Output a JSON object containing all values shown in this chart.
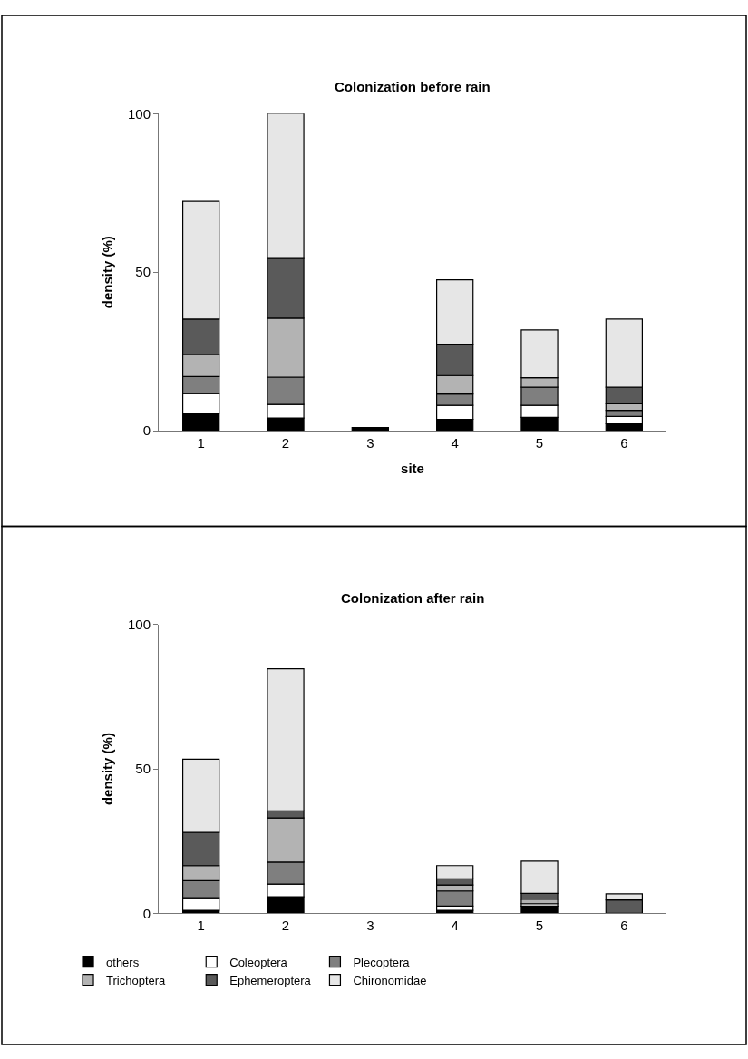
{
  "chart_data": [
    {
      "type": "bar",
      "stacked": true,
      "title": "Colonization before rain",
      "xlabel": "site",
      "ylabel": "density (%)",
      "categories": [
        "1",
        "2",
        "3",
        "4",
        "5",
        "6"
      ],
      "ylim": [
        0,
        100
      ],
      "yticks": [
        0,
        50,
        100
      ],
      "series": [
        {
          "color": "#000000",
          "values": [
            5.5,
            4,
            1,
            3.6,
            4.2,
            2.2
          ]
        },
        {
          "color": "#ffffff",
          "values": [
            6.2,
            4.3,
            0,
            4.4,
            3.8,
            2.3
          ]
        },
        {
          "color": "#7f7f7f",
          "values": [
            5.4,
            8.6,
            0,
            3.6,
            5.7,
            1.9
          ]
        },
        {
          "color": "#b3b3b3",
          "values": [
            6.9,
            18.6,
            0,
            5.8,
            3.0,
            2.1
          ]
        },
        {
          "color": "#5a5a5a",
          "values": [
            11.2,
            18.8,
            0,
            9.9,
            0,
            5.2
          ]
        },
        {
          "color": "#e6e6e6",
          "values": [
            37.1,
            45.8,
            0,
            20.3,
            15.1,
            21.5
          ]
        }
      ]
    },
    {
      "type": "bar",
      "stacked": true,
      "title": "Colonization after rain",
      "ylabel": "density (%)",
      "categories": [
        "1",
        "2",
        "3",
        "4",
        "5",
        "6"
      ],
      "ylim": [
        0,
        100
      ],
      "yticks": [
        0,
        50,
        100
      ],
      "legend": "bottom",
      "series": [
        {
          "name": "others",
          "color": "#000000",
          "values": [
            1,
            5.7,
            0,
            1.0,
            2.5,
            0
          ]
        },
        {
          "name": "Coleoptera",
          "color": "#ffffff",
          "values": [
            4.4,
            4.4,
            0,
            1.5,
            0.8,
            0
          ]
        },
        {
          "name": "Plecoptera",
          "color": "#7f7f7f",
          "values": [
            5.9,
            7.6,
            0,
            5.2,
            0,
            0
          ]
        },
        {
          "name": "Trichoptera",
          "color": "#b3b3b3",
          "values": [
            5.2,
            15.3,
            0,
            2.1,
            1.6,
            0
          ]
        },
        {
          "name": "Ephemeroptera",
          "color": "#5a5a5a",
          "values": [
            11.5,
            2.5,
            0,
            2.1,
            2.0,
            4.6
          ]
        },
        {
          "name": "Chironomidae",
          "color": "#e6e6e6",
          "values": [
            25.4,
            49.2,
            0,
            4.6,
            11.1,
            2.1
          ]
        }
      ]
    }
  ]
}
